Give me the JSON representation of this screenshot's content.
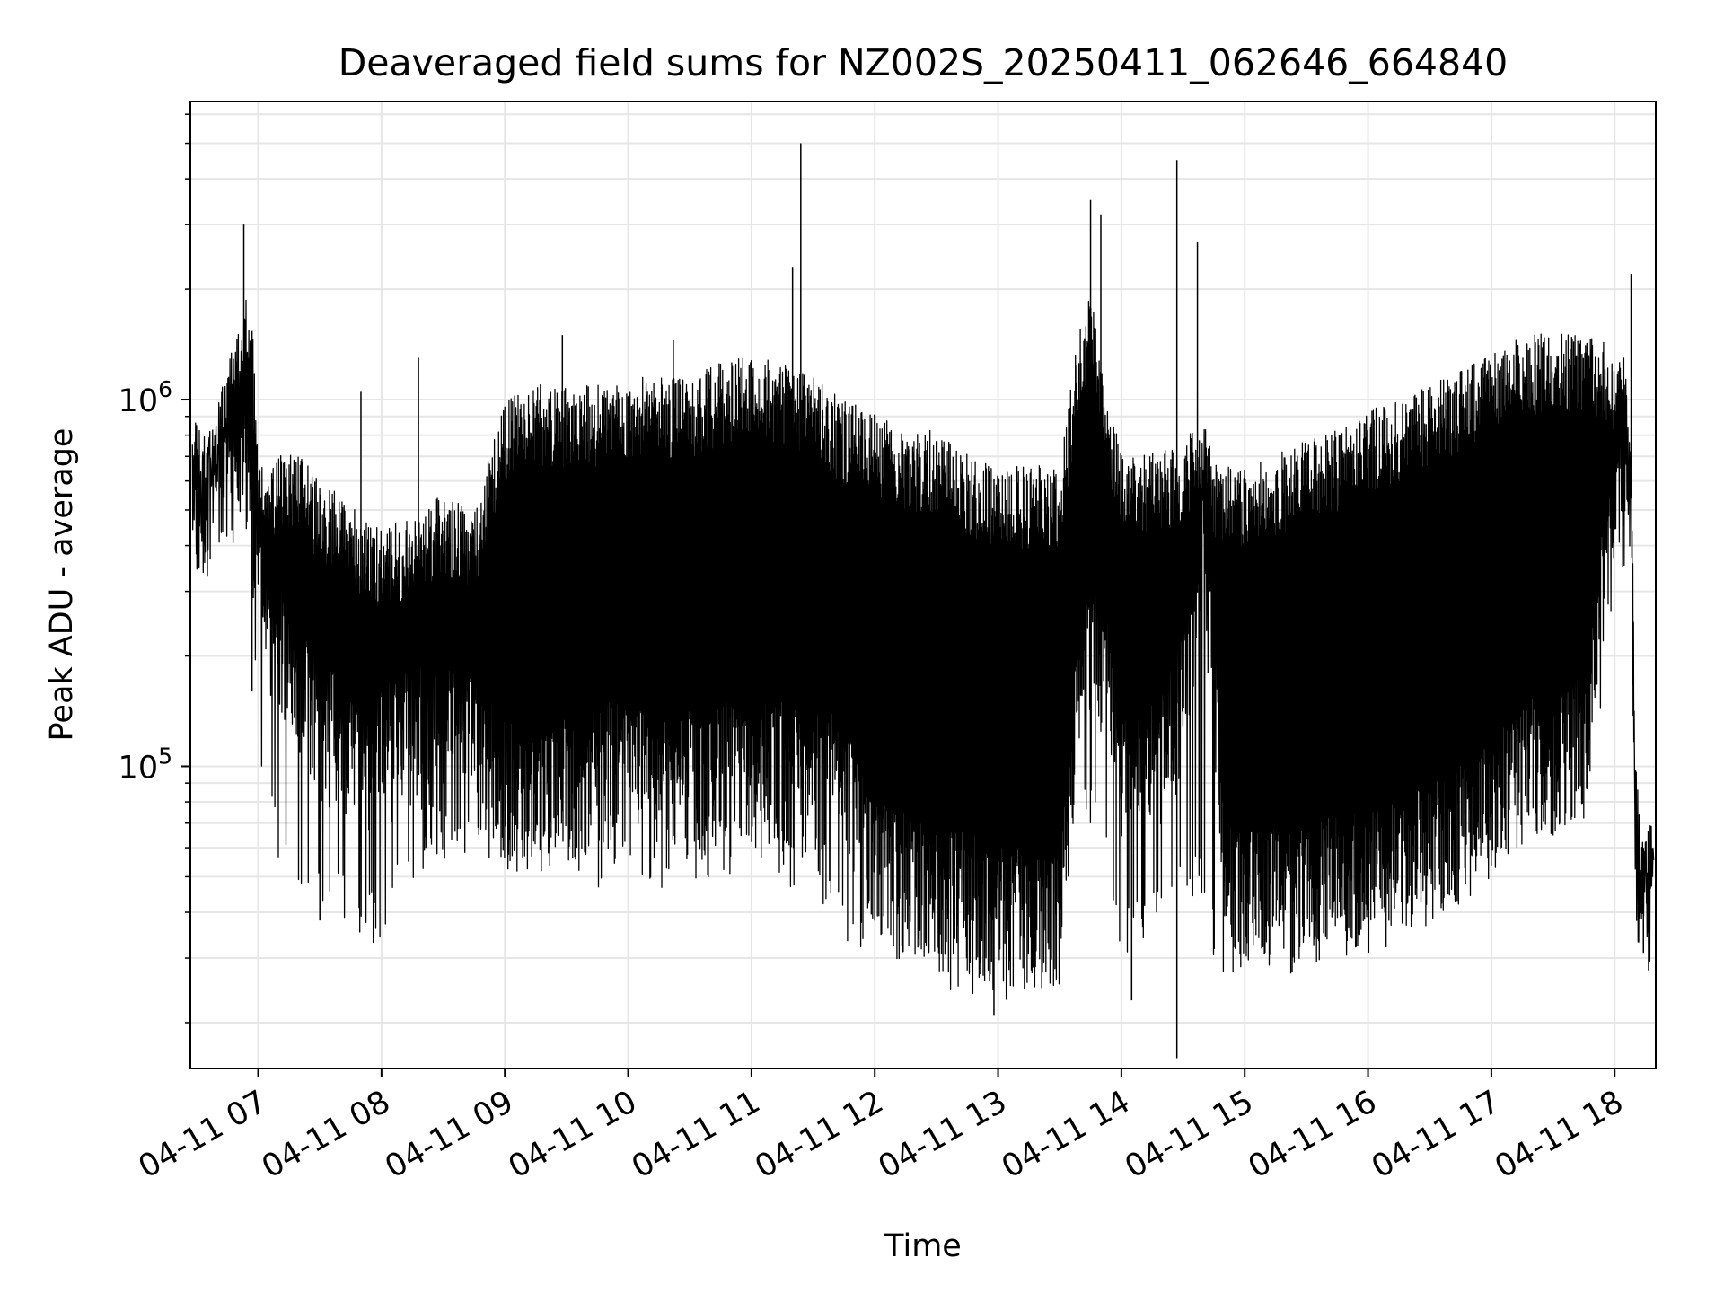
{
  "chart_data": {
    "type": "line",
    "title": "Deaveraged field sums for NZ002S_20250411_062646_664840",
    "xlabel": "Time",
    "ylabel": "Peak ADU - average",
    "xscale": "time",
    "yscale": "log",
    "xlim": [
      "2025-04-11 06:27",
      "2025-04-11 18:20"
    ],
    "ylim": [
      15000,
      6500000
    ],
    "grid": true,
    "grid_color": "#e6e6e6",
    "line_color": "#000000",
    "x_ticks": [
      "2025-04-11 07:00",
      "2025-04-11 08:00",
      "2025-04-11 09:00",
      "2025-04-11 10:00",
      "2025-04-11 11:00",
      "2025-04-11 12:00",
      "2025-04-11 13:00",
      "2025-04-11 14:00",
      "2025-04-11 15:00",
      "2025-04-11 16:00",
      "2025-04-11 17:00",
      "2025-04-11 18:00"
    ],
    "x_tick_labels": [
      "04-11 07",
      "04-11 08",
      "04-11 09",
      "04-11 10",
      "04-11 11",
      "04-11 12",
      "04-11 13",
      "04-11 14",
      "04-11 15",
      "04-11 16",
      "04-11 17",
      "04-11 18"
    ],
    "y_major_ticks": [
      100000,
      1000000
    ],
    "y_major_tick_labels": [
      {
        "base": "10",
        "exp": "5"
      },
      {
        "base": "10",
        "exp": "6"
      }
    ],
    "series": [
      {
        "envelope": {
          "x": [
            "2025-04-11 06:28",
            "2025-04-11 06:35",
            "2025-04-11 06:42",
            "2025-04-11 06:47",
            "2025-04-11 06:52",
            "2025-04-11 06:56",
            "2025-04-11 07:00",
            "2025-04-11 07:06",
            "2025-04-11 07:12",
            "2025-04-11 07:20",
            "2025-04-11 07:30",
            "2025-04-11 07:40",
            "2025-04-11 07:50",
            "2025-04-11 08:00",
            "2025-04-11 08:15",
            "2025-04-11 08:30",
            "2025-04-11 08:45",
            "2025-04-11 09:00",
            "2025-04-11 09:15",
            "2025-04-11 09:30",
            "2025-04-11 09:45",
            "2025-04-11 10:00",
            "2025-04-11 10:15",
            "2025-04-11 10:30",
            "2025-04-11 10:45",
            "2025-04-11 11:00",
            "2025-04-11 11:15",
            "2025-04-11 11:30",
            "2025-04-11 11:45",
            "2025-04-11 12:00",
            "2025-04-11 12:15",
            "2025-04-11 12:30",
            "2025-04-11 12:45",
            "2025-04-11 13:00",
            "2025-04-11 13:15",
            "2025-04-11 13:30",
            "2025-04-11 13:40",
            "2025-04-11 13:45",
            "2025-04-11 13:52",
            "2025-04-11 14:00",
            "2025-04-11 14:15",
            "2025-04-11 14:30",
            "2025-04-11 14:40",
            "2025-04-11 14:45",
            "2025-04-11 14:50",
            "2025-04-11 15:00",
            "2025-04-11 15:15",
            "2025-04-11 15:30",
            "2025-04-11 15:45",
            "2025-04-11 16:00",
            "2025-04-11 16:15",
            "2025-04-11 16:30",
            "2025-04-11 16:45",
            "2025-04-11 17:00",
            "2025-04-11 17:15",
            "2025-04-11 17:30",
            "2025-04-11 17:45",
            "2025-04-11 17:55",
            "2025-04-11 18:02",
            "2025-04-11 18:05",
            "2025-04-11 18:08",
            "2025-04-11 18:10",
            "2025-04-11 18:13",
            "2025-04-11 18:16",
            "2025-04-11 18:19"
          ],
          "high": [
            850000,
            700000,
            950000,
            1300000,
            1700000,
            2000000,
            700000,
            650000,
            650000,
            650000,
            550000,
            500000,
            450000,
            400000,
            450000,
            500000,
            450000,
            900000,
            1000000,
            1000000,
            1000000,
            1050000,
            1050000,
            1050000,
            1150000,
            1200000,
            1150000,
            1050000,
            900000,
            850000,
            750000,
            750000,
            650000,
            600000,
            600000,
            600000,
            1500000,
            1800000,
            1000000,
            650000,
            650000,
            700000,
            800000,
            650000,
            600000,
            600000,
            650000,
            700000,
            750000,
            850000,
            900000,
            1000000,
            1100000,
            1250000,
            1350000,
            1400000,
            1400000,
            1300000,
            1200000,
            1200000,
            800000,
            100000,
            60000,
            60000,
            70000
          ],
          "low": [
            600000,
            500000,
            550000,
            650000,
            700000,
            600000,
            300000,
            250000,
            200000,
            180000,
            130000,
            120000,
            110000,
            110000,
            130000,
            120000,
            140000,
            90000,
            85000,
            90000,
            100000,
            100000,
            90000,
            95000,
            100000,
            100000,
            100000,
            100000,
            90000,
            55000,
            50000,
            45000,
            45000,
            40000,
            40000,
            40000,
            200000,
            200000,
            200000,
            100000,
            100000,
            150000,
            400000,
            200000,
            50000,
            45000,
            45000,
            45000,
            50000,
            50000,
            55000,
            60000,
            70000,
            80000,
            100000,
            110000,
            120000,
            350000,
            500000,
            500000,
            600000,
            50000,
            40000,
            38000,
            55000
          ],
          "low_extreme": [
            400000,
            350000,
            380000,
            400000,
            350000,
            350000,
            130000,
            75000,
            60000,
            50000,
            50000,
            45000,
            40000,
            40000,
            55000,
            65000,
            65000,
            60000,
            60000,
            60000,
            55000,
            60000,
            55000,
            55000,
            60000,
            60000,
            55000,
            55000,
            40000,
            35000,
            32000,
            30000,
            28000,
            25000,
            28000,
            30000,
            100000,
            80000,
            70000,
            35000,
            40000,
            50000,
            50000,
            35000,
            32000,
            32000,
            33000,
            35000,
            38000,
            40000,
            45000,
            50000,
            60000,
            65000,
            70000,
            75000,
            80000,
            200000,
            400000,
            450000,
            500000,
            40000,
            35000,
            33000,
            50000
          ]
        },
        "spikes": [
          {
            "x": "2025-04-11 06:53",
            "y": 3000000
          },
          {
            "x": "2025-04-11 07:50",
            "y": 1050000
          },
          {
            "x": "2025-04-11 08:18",
            "y": 1300000
          },
          {
            "x": "2025-04-11 09:28",
            "y": 1500000
          },
          {
            "x": "2025-04-11 10:22",
            "y": 1450000
          },
          {
            "x": "2025-04-11 11:20",
            "y": 2300000
          },
          {
            "x": "2025-04-11 11:24",
            "y": 5000000
          },
          {
            "x": "2025-04-11 13:45",
            "y": 3500000
          },
          {
            "x": "2025-04-11 13:50",
            "y": 3200000
          },
          {
            "x": "2025-04-11 14:27",
            "y": 4500000
          },
          {
            "x": "2025-04-11 14:37",
            "y": 2700000
          },
          {
            "x": "2025-04-11 18:08",
            "y": 2200000
          }
        ],
        "dips": [
          {
            "x": "2025-04-11 06:57",
            "y": 160000
          },
          {
            "x": "2025-04-11 07:30",
            "y": 38000
          },
          {
            "x": "2025-04-11 07:56",
            "y": 33000
          },
          {
            "x": "2025-04-11 12:58",
            "y": 21000
          },
          {
            "x": "2025-04-11 14:05",
            "y": 23000
          },
          {
            "x": "2025-04-11 14:27",
            "y": 16000
          },
          {
            "x": "2025-04-11 18:14",
            "y": 31000
          }
        ]
      }
    ]
  }
}
